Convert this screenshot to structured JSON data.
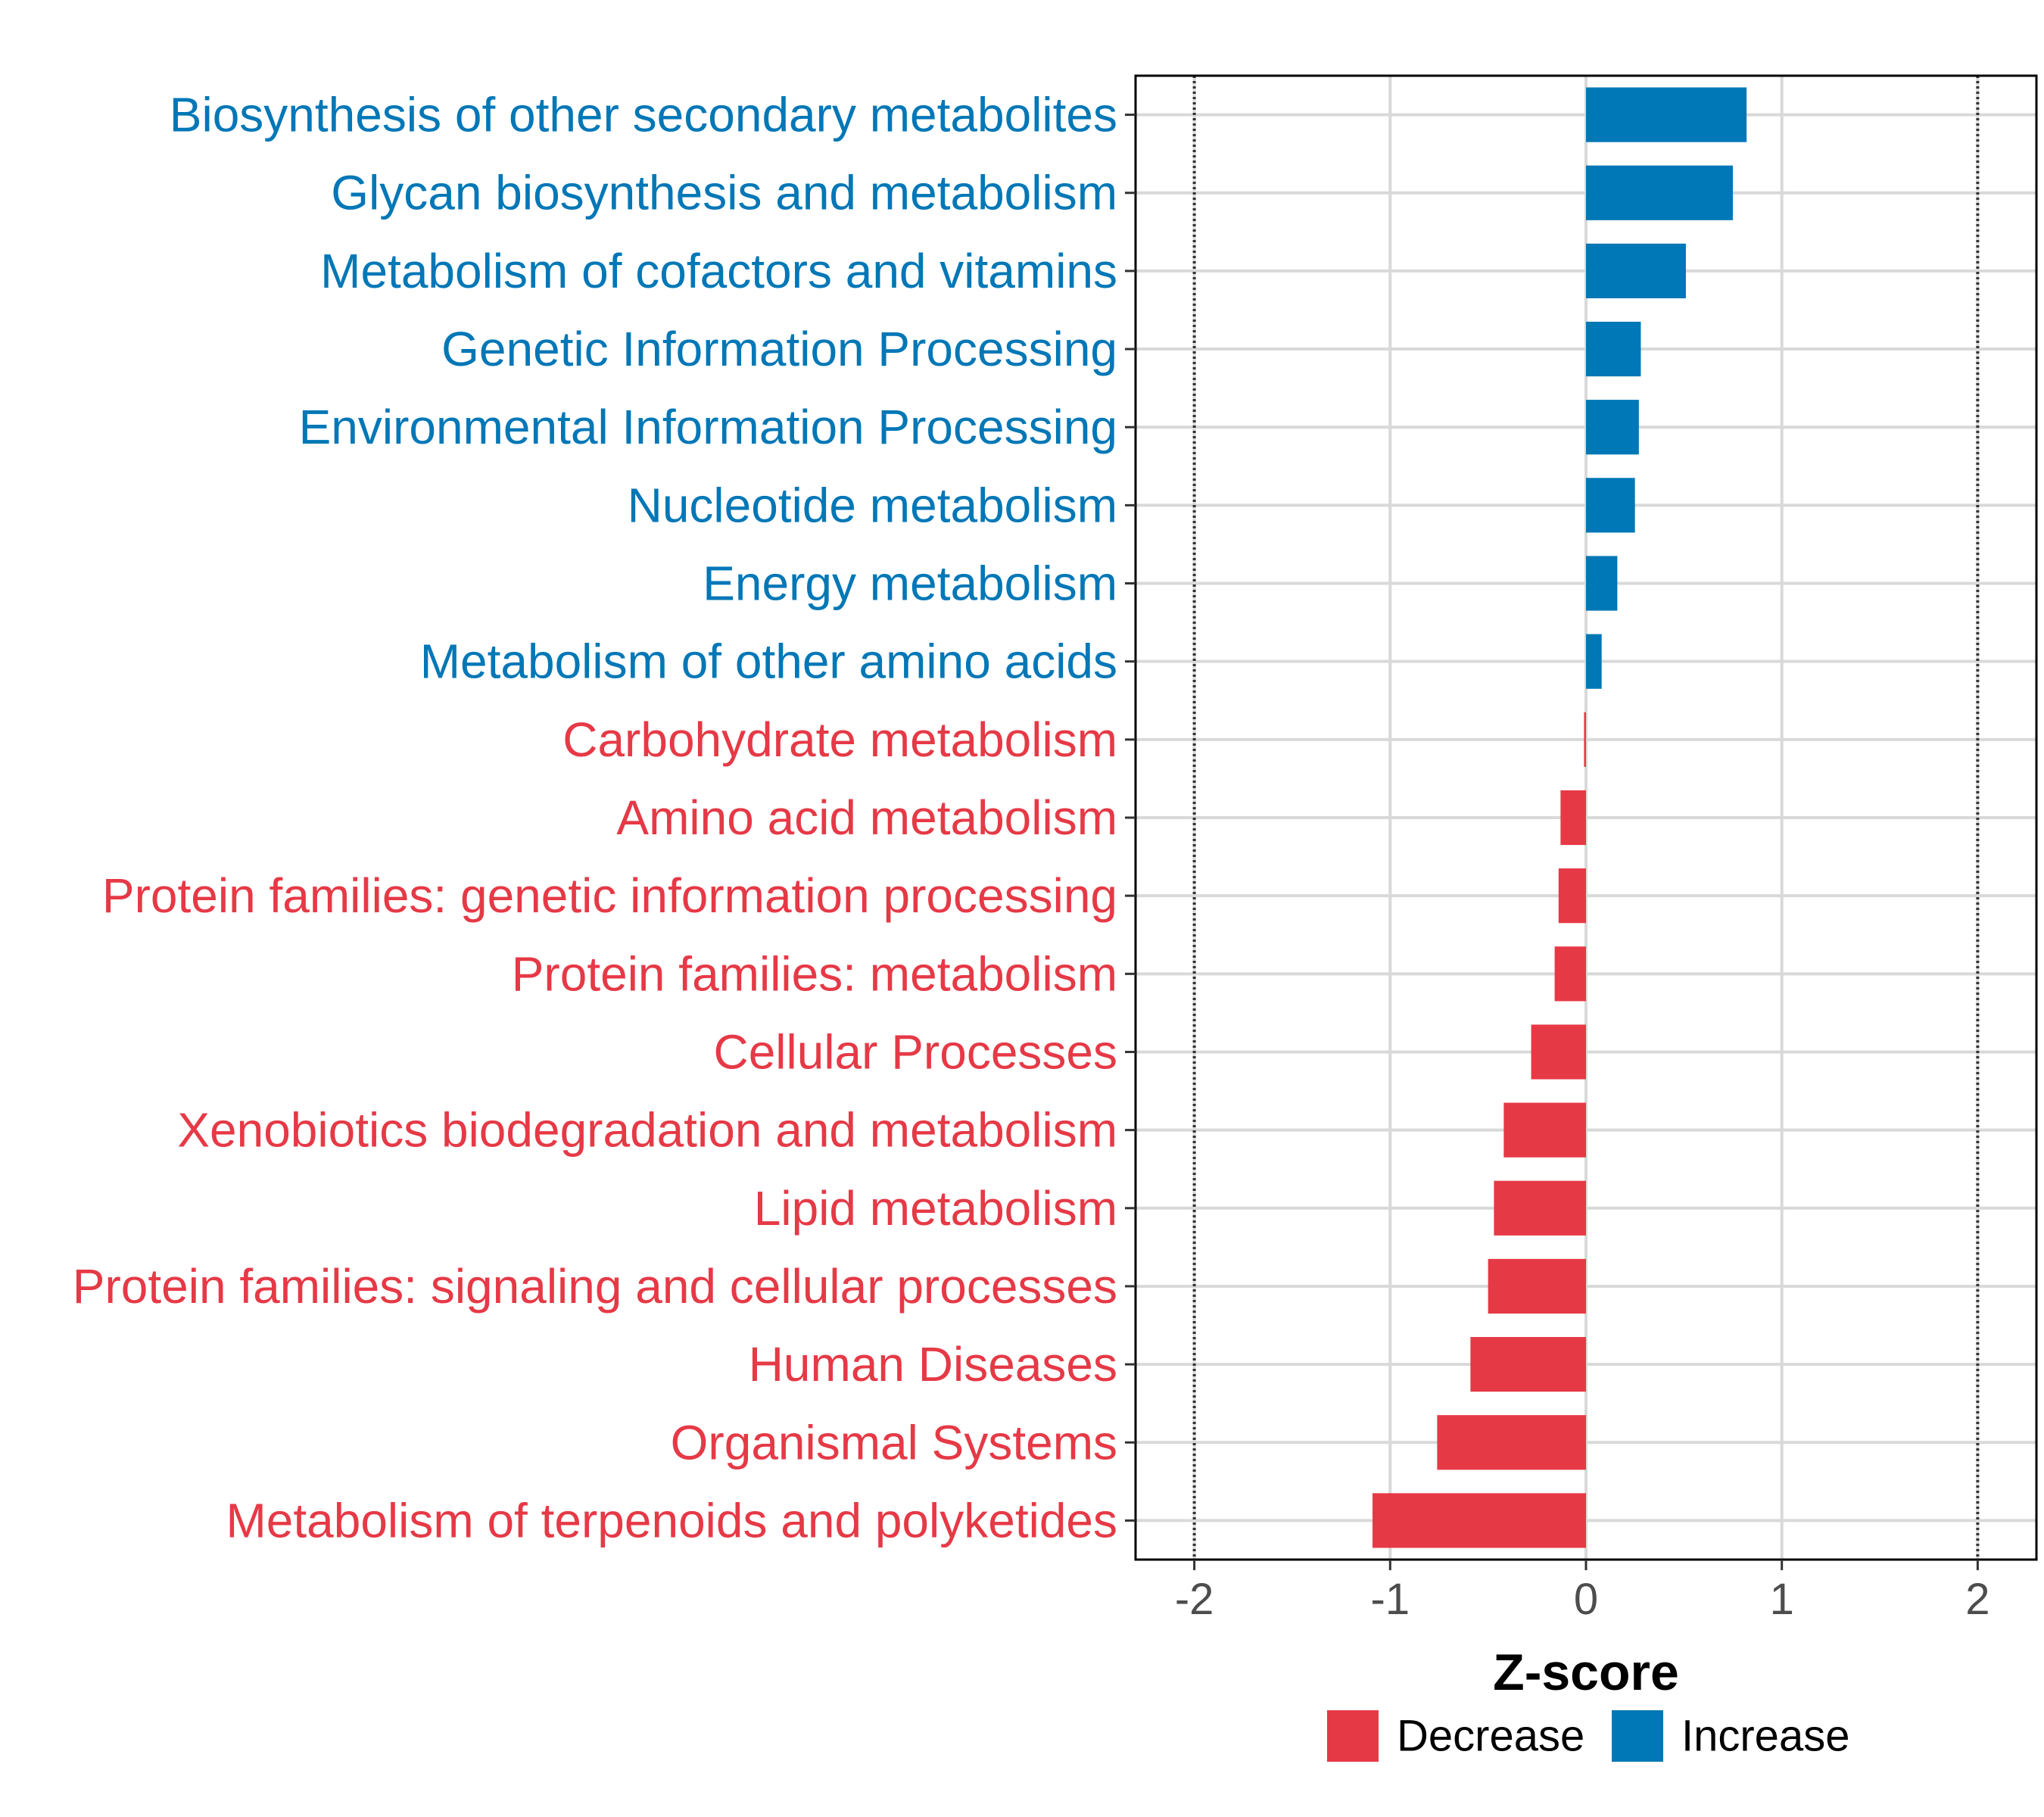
{
  "chart_data": {
    "type": "bar",
    "orientation": "horizontal",
    "title": "",
    "xlabel": "Z-score",
    "ylabel": "",
    "xlim": [
      -2.3,
      2.3
    ],
    "x_ticks": [
      -2,
      -1,
      0,
      1,
      2
    ],
    "x_tick_labels": [
      "-2",
      "-1",
      "0",
      "1",
      "2"
    ],
    "reference_lines": [
      -2,
      2
    ],
    "grid": true,
    "categories": [
      "Biosynthesis of other secondary metabolites",
      "Glycan biosynthesis and metabolism",
      "Metabolism of cofactors and vitamins",
      "Genetic Information Processing",
      "Environmental Information Processing",
      "Nucleotide metabolism",
      "Energy metabolism",
      "Metabolism of other amino acids",
      "Carbohydrate metabolism",
      "Amino acid metabolism",
      "Protein families: genetic information processing",
      "Protein families: metabolism",
      "Cellular Processes",
      "Xenobiotics biodegradation and metabolism",
      "Lipid metabolism",
      "Protein families: signaling and cellular processes",
      "Human Diseases",
      "Organismal Systems",
      "Metabolism of terpenoids and polyketides"
    ],
    "values": [
      0.82,
      0.75,
      0.51,
      0.28,
      0.27,
      0.25,
      0.16,
      0.08,
      -0.01,
      -0.13,
      -0.14,
      -0.16,
      -0.28,
      -0.42,
      -0.47,
      -0.5,
      -0.59,
      -0.76,
      -1.09
    ],
    "legend": {
      "position": "bottom",
      "entries": [
        {
          "label": "Decrease",
          "color": "#E63946"
        },
        {
          "label": "Increase",
          "color": "#0077B6"
        }
      ]
    },
    "colors": {
      "Decrease": "#E63946",
      "Increase": "#0077B6",
      "grid": "#d9d9d9",
      "reference_line": "#333333",
      "panel_border": "#000000"
    }
  }
}
